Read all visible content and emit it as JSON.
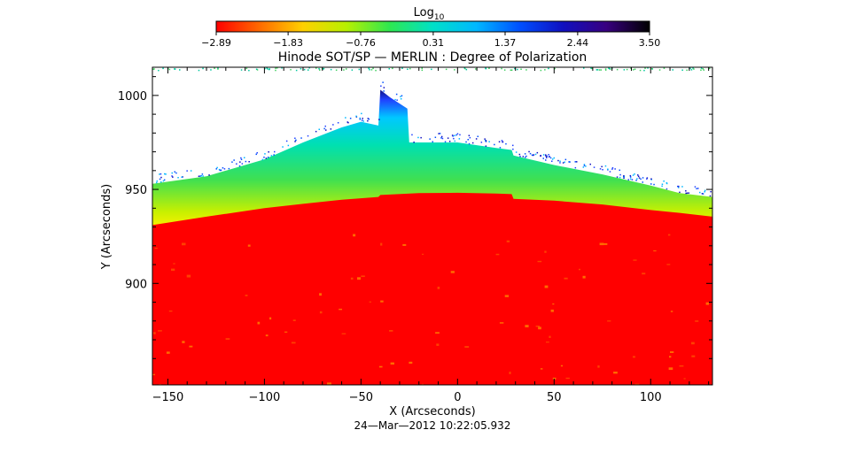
{
  "chart_data": {
    "type": "heatmap",
    "title": "Hinode SOT/SP — MERLIN : Degree of Polarization",
    "xlabel": "X (Arcseconds)",
    "ylabel": "Y (Arcseconds)",
    "xlim": [
      -158,
      132
    ],
    "ylim": [
      846,
      1015
    ],
    "x_ticks": [
      -150,
      -100,
      -50,
      0,
      50,
      100
    ],
    "x_tick_labels": [
      "−150",
      "−100",
      "−50",
      "0",
      "50",
      "100"
    ],
    "y_ticks": [
      900,
      950,
      1000
    ],
    "y_tick_labels": [
      "900",
      "950",
      "1000"
    ],
    "timestamp": "24—Mar—2012  10:22:05.932",
    "colorbar": {
      "label_base": "Log",
      "label_sub": "10",
      "min": -2.89,
      "max": 3.5,
      "tick_values": [
        -2.89,
        -1.83,
        -0.76,
        0.31,
        1.37,
        2.44,
        3.5
      ],
      "tick_labels": [
        "−2.89",
        "−1.83",
        "−0.76",
        "0.31",
        "1.37",
        "2.44",
        "3.50"
      ],
      "colormap": [
        "#ff0000",
        "#ff6a00",
        "#ffd000",
        "#b8f000",
        "#2ee850",
        "#00e0c8",
        "#00b8ff",
        "#0050ff",
        "#1010c0",
        "#380080",
        "#000000"
      ]
    },
    "limb_profile": {
      "description_values": "y position of limb edge (arcsec) vs x (arcsec)",
      "x": [
        -158,
        -130,
        -100,
        -80,
        -60,
        -41,
        -40,
        -20,
        0,
        20,
        28,
        29,
        50,
        75,
        100,
        115,
        132
      ],
      "y": [
        931,
        935.5,
        940,
        942.3,
        944.5,
        946,
        947,
        948,
        948.2,
        947.8,
        947.5,
        945,
        944,
        942,
        939,
        937.5,
        935.5
      ]
    },
    "signal_top_profile": {
      "x": [
        -158,
        -130,
        -100,
        -80,
        -60,
        -50,
        -41,
        -40,
        -35,
        -26,
        -25,
        0,
        20,
        28,
        29,
        50,
        75,
        100,
        115,
        132
      ],
      "y": [
        953,
        957,
        966,
        975,
        983,
        986,
        984,
        1003,
        999,
        993,
        975,
        975,
        972,
        971,
        968,
        963,
        958,
        952,
        948,
        946
      ]
    },
    "grid": false,
    "colors": {
      "disk": "#ff0000",
      "background": "#ffffff",
      "axes": "#000000"
    }
  }
}
